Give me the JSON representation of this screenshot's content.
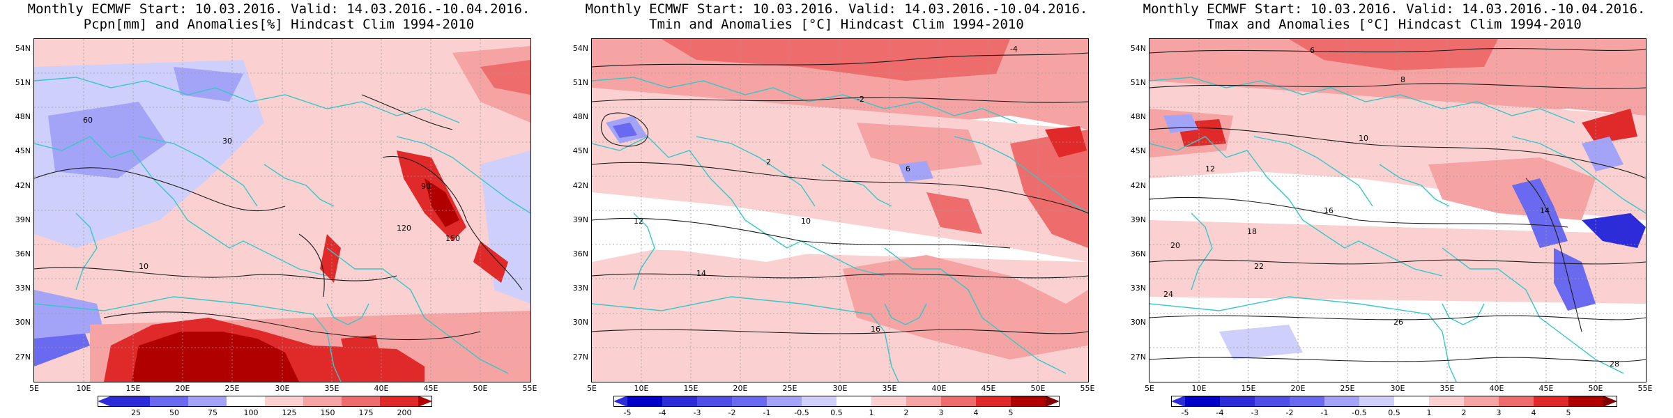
{
  "palette": {
    "neg3": "#2c2cd8",
    "neg2": "#6a6af0",
    "neg1": "#a3a3f7",
    "neg0": "#cfcffb",
    "pos0": "#fbd0d0",
    "pos1": "#f5a3a3",
    "pos2": "#ef6c6c",
    "pos3": "#e02a2a",
    "pos4": "#b00000",
    "contour": "#1a1a1a",
    "coast": "#35c8c8"
  },
  "latitudes": [
    "54N",
    "51N",
    "48N",
    "45N",
    "42N",
    "39N",
    "36N",
    "33N",
    "30N",
    "27N"
  ],
  "longitudes": [
    "5E",
    "10E",
    "15E",
    "20E",
    "25E",
    "30E",
    "35E",
    "40E",
    "45E",
    "50E",
    "55E"
  ],
  "panels": [
    {
      "title_line1": "Monthly ECMWF Start: 10.03.2016. Valid: 14.03.2016.-10.04.2016.",
      "title_line2": "Pcpn[mm] and Anomalies[%] Hindcast Clim 1994-2010",
      "colorbar_labels": [
        "25",
        "50",
        "75",
        "100",
        "125",
        "150",
        "175",
        "200"
      ],
      "contour_labels": [
        "30",
        "60",
        "90",
        "120",
        "150",
        "10"
      ]
    },
    {
      "title_line1": "Monthly ECMWF Start: 10.03.2016. Valid: 14.03.2016.-10.04.2016.",
      "title_line2": "Tmin and Anomalies [°C] Hindcast Clim 1994-2010",
      "colorbar_labels": [
        "-5",
        "-4",
        "-3",
        "-2",
        "-1",
        "-0.5",
        "0.5",
        "1",
        "2",
        "3",
        "4",
        "5"
      ],
      "contour_labels": [
        "-4",
        "-2",
        "2",
        "6",
        "10",
        "12",
        "14",
        "16"
      ]
    },
    {
      "title_line1": "Monthly ECMWF Start: 10.03.2016. Valid: 14.03.2016.-10.04.2016.",
      "title_line2": "Tmax and Anomalies [°C] Hindcast Clim 1994-2010",
      "colorbar_labels": [
        "-5",
        "-4",
        "-3",
        "-2",
        "-1",
        "-0.5",
        "0.5",
        "1",
        "2",
        "3",
        "4",
        "5"
      ],
      "contour_labels": [
        "6",
        "8",
        "10",
        "12",
        "14",
        "16",
        "18",
        "20",
        "22",
        "24",
        "26",
        "28"
      ]
    }
  ]
}
